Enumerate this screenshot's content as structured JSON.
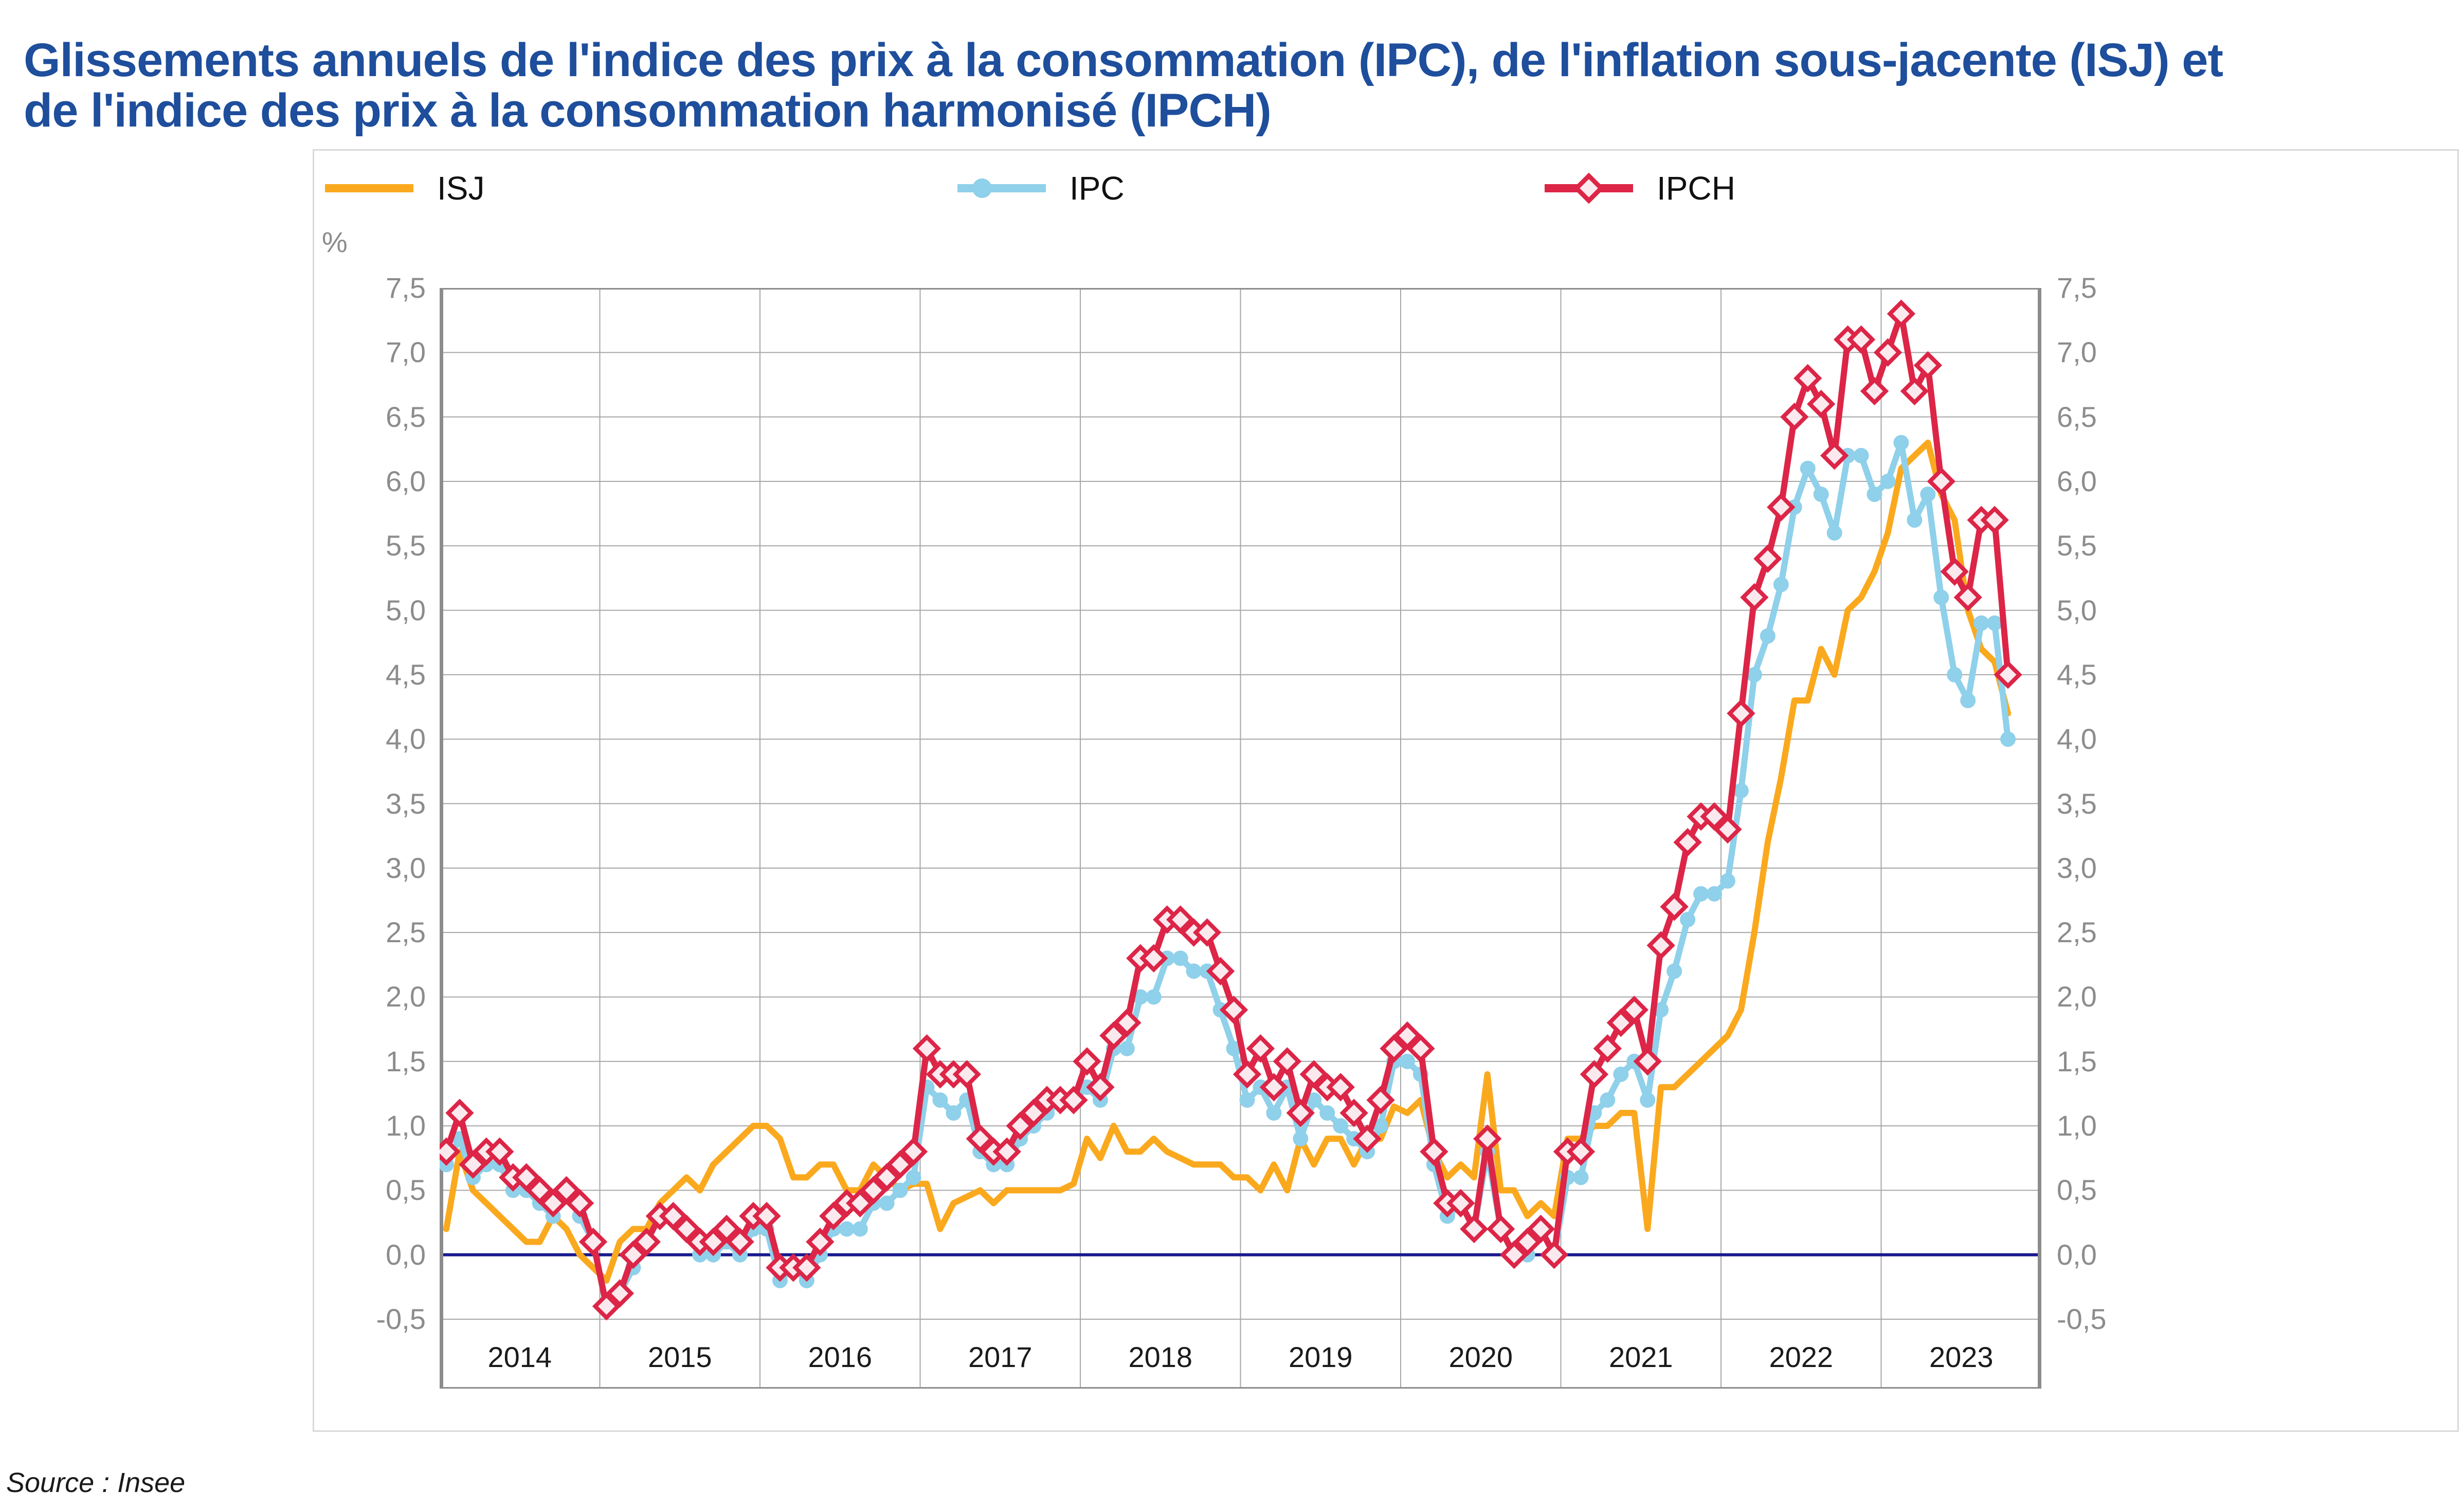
{
  "title": {
    "line1": "Glissements annuels de l'indice des prix à la consommation (IPC), de l'inflation sous-jacente (ISJ) et",
    "line2": "de l'indice des prix à la consommation harmonisé (IPCH)",
    "color": "#1E4E9C"
  },
  "source_note": "Source : Insee",
  "legend": {
    "items": [
      {
        "id": "isj",
        "label": "ISJ",
        "color": "#FAA91E",
        "marker": "none"
      },
      {
        "id": "ipc",
        "label": "IPC",
        "color": "#8FD0EA",
        "marker": "circle"
      },
      {
        "id": "ipch",
        "label": "IPCH",
        "color": "#DC2547",
        "marker": "diamond",
        "marker_fill": "#FBE9EE"
      }
    ]
  },
  "axis": {
    "unit_label": "%",
    "y_tick_labels": [
      "7,5",
      "7,0",
      "6,5",
      "6,0",
      "5,5",
      "5,0",
      "4,5",
      "4,0",
      "3,5",
      "3,0",
      "2,5",
      "2,0",
      "1,5",
      "1,0",
      "0,5",
      "0,0",
      "-0,5"
    ],
    "x_year_labels": [
      "2014",
      "2015",
      "2016",
      "2017",
      "2018",
      "2019",
      "2020",
      "2021",
      "2022",
      "2023"
    ]
  },
  "chart_data": {
    "type": "line",
    "title": "Glissements annuels de l'indice des prix à la consommation (IPC), de l'inflation sous-jacente (ISJ) et de l'indice des prix à la consommation harmonisé (IPCH)",
    "ylabel": "%",
    "ylim": [
      -0.5,
      7.5
    ],
    "y_step": 0.5,
    "grid": true,
    "legend_position": "top",
    "x_frequency": "monthly",
    "x_start": "2014-01",
    "x_end": "2023-10",
    "zero_line_color": "#1A1A8F",
    "grid_color": "#A6A6A6",
    "axis_color": "#8C8C8C",
    "series": [
      {
        "name": "ISJ",
        "color": "#FAA91E",
        "marker": "none",
        "values": [
          0.2,
          0.8,
          0.5,
          0.4,
          0.3,
          0.2,
          0.1,
          0.1,
          0.3,
          0.2,
          0.0,
          -0.1,
          -0.2,
          0.1,
          0.2,
          0.2,
          0.4,
          0.5,
          0.6,
          0.5,
          0.7,
          0.8,
          0.9,
          1.0,
          1.0,
          0.9,
          0.6,
          0.6,
          0.7,
          0.7,
          0.5,
          0.5,
          0.7,
          0.6,
          0.5,
          0.55,
          0.55,
          0.2,
          0.4,
          0.45,
          0.5,
          0.4,
          0.5,
          0.5,
          0.5,
          0.5,
          0.5,
          0.55,
          0.9,
          0.75,
          1.0,
          0.8,
          0.8,
          0.9,
          0.8,
          0.75,
          0.7,
          0.7,
          0.7,
          0.6,
          0.6,
          0.5,
          0.7,
          0.5,
          0.9,
          0.7,
          0.9,
          0.9,
          0.7,
          0.9,
          0.9,
          1.15,
          1.1,
          1.2,
          0.8,
          0.6,
          0.7,
          0.6,
          1.4,
          0.5,
          0.5,
          0.3,
          0.4,
          0.3,
          0.9,
          0.9,
          1.0,
          1.0,
          1.1,
          1.1,
          0.2,
          1.3,
          1.3,
          1.4,
          1.5,
          1.6,
          1.7,
          1.9,
          2.5,
          3.2,
          3.7,
          4.3,
          4.3,
          4.7,
          4.5,
          5.0,
          5.1,
          5.3,
          5.6,
          6.1,
          6.2,
          6.3,
          5.9,
          5.7,
          5.0,
          4.7,
          4.6,
          4.2
        ]
      },
      {
        "name": "IPC",
        "color": "#8FD0EA",
        "marker": "circle",
        "values": [
          0.7,
          0.9,
          0.6,
          0.7,
          0.7,
          0.5,
          0.5,
          0.4,
          0.3,
          0.5,
          0.3,
          0.1,
          -0.4,
          -0.3,
          -0.1,
          0.1,
          0.3,
          0.3,
          0.2,
          0.0,
          0.0,
          0.1,
          0.0,
          0.2,
          0.2,
          -0.2,
          -0.1,
          -0.2,
          0.0,
          0.2,
          0.2,
          0.2,
          0.4,
          0.4,
          0.5,
          0.6,
          1.3,
          1.2,
          1.1,
          1.2,
          0.8,
          0.7,
          0.7,
          0.9,
          1.0,
          1.1,
          1.2,
          1.2,
          1.3,
          1.2,
          1.6,
          1.6,
          2.0,
          2.0,
          2.3,
          2.3,
          2.2,
          2.2,
          1.9,
          1.6,
          1.2,
          1.3,
          1.1,
          1.3,
          0.9,
          1.2,
          1.1,
          1.0,
          0.9,
          0.8,
          1.0,
          1.5,
          1.5,
          1.4,
          0.7,
          0.3,
          0.4,
          0.2,
          0.8,
          0.2,
          0.0,
          0.0,
          0.2,
          0.0,
          0.6,
          0.6,
          1.1,
          1.2,
          1.4,
          1.5,
          1.2,
          1.9,
          2.2,
          2.6,
          2.8,
          2.8,
          2.9,
          3.6,
          4.5,
          4.8,
          5.2,
          5.8,
          6.1,
          5.9,
          5.6,
          6.2,
          6.2,
          5.9,
          6.0,
          6.3,
          5.7,
          5.9,
          5.1,
          4.5,
          4.3,
          4.9,
          4.9,
          4.0
        ]
      },
      {
        "name": "IPCH",
        "color": "#DC2547",
        "marker": "diamond",
        "marker_fill": "#FBE9EE",
        "values": [
          0.8,
          1.1,
          0.7,
          0.8,
          0.8,
          0.6,
          0.6,
          0.5,
          0.4,
          0.5,
          0.4,
          0.1,
          -0.4,
          -0.3,
          0.0,
          0.1,
          0.3,
          0.3,
          0.2,
          0.1,
          0.1,
          0.2,
          0.1,
          0.3,
          0.3,
          -0.1,
          -0.1,
          -0.1,
          0.1,
          0.3,
          0.4,
          0.4,
          0.5,
          0.6,
          0.7,
          0.8,
          1.6,
          1.4,
          1.4,
          1.4,
          0.9,
          0.8,
          0.8,
          1.0,
          1.1,
          1.2,
          1.2,
          1.2,
          1.5,
          1.3,
          1.7,
          1.8,
          2.3,
          2.3,
          2.6,
          2.6,
          2.5,
          2.5,
          2.2,
          1.9,
          1.4,
          1.6,
          1.3,
          1.5,
          1.1,
          1.4,
          1.3,
          1.3,
          1.1,
          0.9,
          1.2,
          1.6,
          1.7,
          1.6,
          0.8,
          0.4,
          0.4,
          0.2,
          0.9,
          0.2,
          0.0,
          0.1,
          0.2,
          0.0,
          0.8,
          0.8,
          1.4,
          1.6,
          1.8,
          1.9,
          1.5,
          2.4,
          2.7,
          3.2,
          3.4,
          3.4,
          3.3,
          4.2,
          5.1,
          5.4,
          5.8,
          6.5,
          6.8,
          6.6,
          6.2,
          7.1,
          7.1,
          6.7,
          7.0,
          7.3,
          6.7,
          6.9,
          6.0,
          5.3,
          5.1,
          5.7,
          5.7,
          4.5
        ]
      }
    ]
  }
}
